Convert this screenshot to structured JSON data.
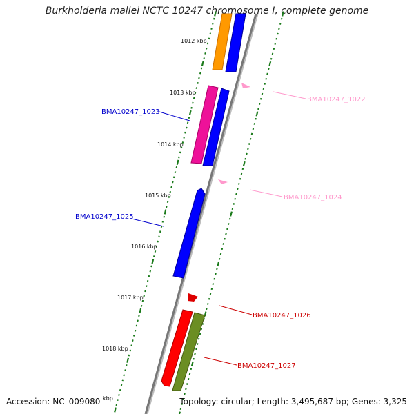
{
  "title": "Burkholderia mallei NCTC 10247 chromosome I, complete genome",
  "footer": {
    "accession": "Accession: NC_009080",
    "topology": "Topology: circular; Length: 3,495,687 bp; Genes: 3,325"
  },
  "ticks": [
    {
      "label": "1012 kbp"
    },
    {
      "label": "1013 kbp"
    },
    {
      "label": "1014 kbp"
    },
    {
      "label": "1015 kbp"
    },
    {
      "label": "1016 kbp"
    },
    {
      "label": "1017 kbp"
    },
    {
      "label": "1018 kbp"
    },
    {
      "label": "kbp"
    }
  ],
  "genes": [
    {
      "label": "BMA10247_1022",
      "color": "#ff99cc"
    },
    {
      "label": "BMA10247_1023",
      "color": "#0000cc"
    },
    {
      "label": "BMA10247_1024",
      "color": "#ff99cc"
    },
    {
      "label": "BMA10247_1025",
      "color": "#0000cc"
    },
    {
      "label": "BMA10247_1026",
      "color": "#cc0000"
    },
    {
      "label": "BMA10247_1027",
      "color": "#cc0000"
    }
  ],
  "colors": {
    "backbone": "#888888",
    "tick": "#1a7a1a",
    "orange_gene": "#ff9900",
    "blue_gene": "#0000ff",
    "magenta_gene": "#ee1199",
    "red_gene": "#ff0000",
    "olive_gene": "#6b8e23",
    "pink_gene": "#ff99cc"
  }
}
